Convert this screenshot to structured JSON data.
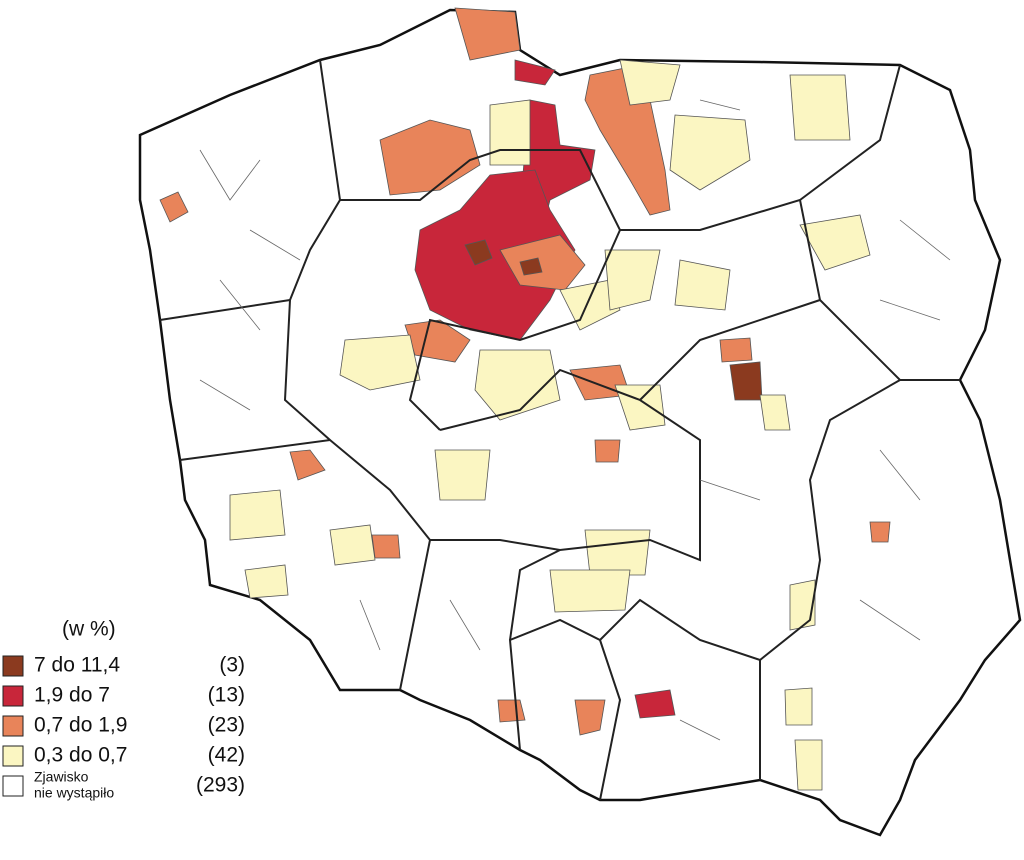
{
  "legend": {
    "title": "(w %)",
    "items": [
      {
        "label": "7 do 11,4",
        "count": "(3)",
        "color": "#8b3a1f"
      },
      {
        "label": "1,9 do 7",
        "count": "(13)",
        "color": "#c8263a"
      },
      {
        "label": "0,7 do 1,9",
        "count": "(23)",
        "color": "#e8845a"
      },
      {
        "label": "0,3 do 0,7",
        "count": "(42)",
        "color": "#fbf6c2"
      },
      {
        "label_lines": [
          "Zjawisko",
          "nie wystąpiło"
        ],
        "count": "(293)",
        "color": "#ffffff"
      }
    ]
  }
}
